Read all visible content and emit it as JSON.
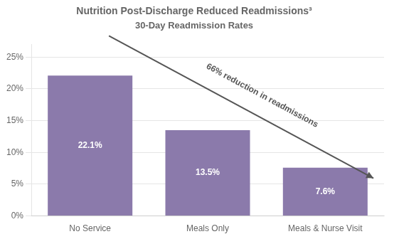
{
  "chart_data": {
    "type": "bar",
    "title": "Nutrition Post-Discharge Reduced Readmissions³",
    "subtitle": "30-Day Readmission Rates",
    "categories": [
      "No Service",
      "Meals Only",
      "Meals & Nurse Visit"
    ],
    "values": [
      22.1,
      13.5,
      7.6
    ],
    "value_labels": [
      "22.1%",
      "13.5%",
      "7.6%"
    ],
    "data_labels": true,
    "color": "#8b7aab",
    "ylim": [
      0,
      27
    ],
    "yticks": [
      {
        "value": 0,
        "label": "0%"
      },
      {
        "value": 5,
        "label": "5%"
      },
      {
        "value": 10,
        "label": "10%"
      },
      {
        "value": 15,
        "label": "15%"
      },
      {
        "value": 20,
        "label": "20%"
      },
      {
        "value": 25,
        "label": "25%"
      }
    ],
    "grid": true,
    "annotation": "66% reduction in readmissions"
  }
}
